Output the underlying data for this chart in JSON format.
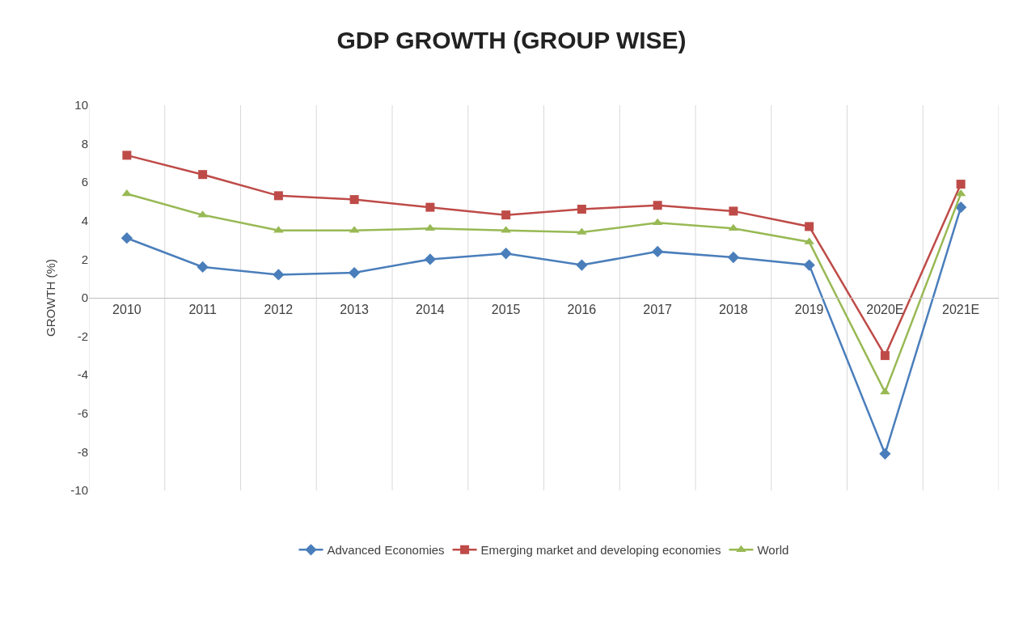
{
  "chart_data": {
    "type": "line",
    "title": "GDP GROWTH (GROUP WISE)",
    "ylabel": "GROWTH (%)",
    "categories": [
      "2010",
      "2011",
      "2012",
      "2013",
      "2014",
      "2015",
      "2016",
      "2017",
      "2018",
      "2019",
      "2020E",
      "2021E"
    ],
    "series": [
      {
        "name": "Advanced Economies",
        "color": "#4a7ebb",
        "marker": "diamond",
        "values": [
          3.1,
          1.6,
          1.2,
          1.3,
          2.0,
          2.3,
          1.7,
          2.4,
          2.1,
          1.7,
          -8.1,
          4.7
        ]
      },
      {
        "name": "Emerging market and developing economies",
        "color": "#be4b48",
        "marker": "square",
        "values": [
          7.4,
          6.4,
          5.3,
          5.1,
          4.7,
          4.3,
          4.6,
          4.8,
          4.5,
          3.7,
          -3.0,
          5.9
        ]
      },
      {
        "name": "World",
        "color": "#98b954",
        "marker": "triangle",
        "values": [
          5.4,
          4.3,
          3.5,
          3.5,
          3.6,
          3.5,
          3.4,
          3.9,
          3.6,
          2.9,
          -4.9,
          5.4
        ]
      }
    ],
    "ylim": [
      -10,
      10
    ],
    "yticks": [
      -10,
      -8,
      -6,
      -4,
      -2,
      0,
      2,
      4,
      6,
      8,
      10
    ],
    "grid": "x",
    "legend": "bottom"
  }
}
